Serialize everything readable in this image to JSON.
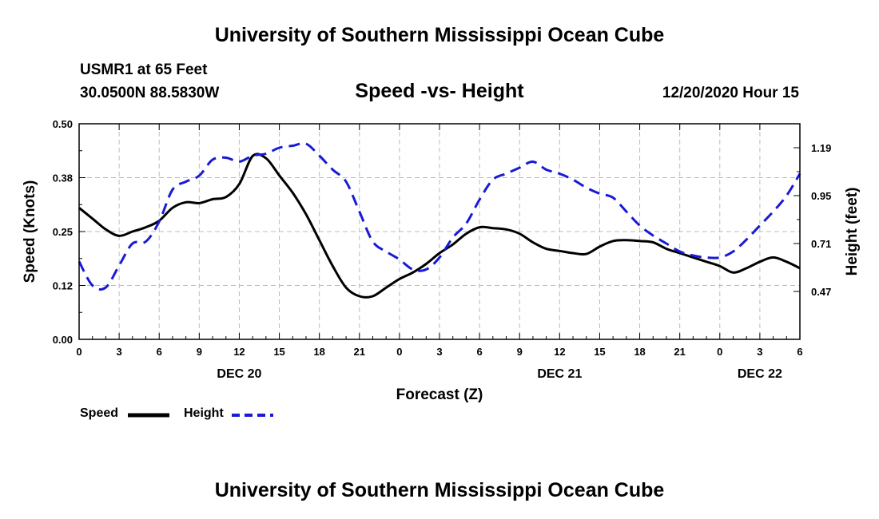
{
  "header": {
    "title": "University of Southern Mississippi Ocean Cube",
    "station": "USMR1 at 65 Feet",
    "coords": "30.0500N 88.5830W",
    "subtitle": "Speed -vs- Height",
    "datetime": "12/20/2020 Hour 15"
  },
  "footer": {
    "title": "University of Southern Mississippi Ocean Cube"
  },
  "colors": {
    "speed": "#000000",
    "height": "#1a1ad6",
    "grid": "#bbbbbb"
  },
  "chart_data": {
    "type": "line",
    "xlabel": "Forecast (Z)",
    "ylabel": "Speed (Knots)",
    "y2label": "Height (feet)",
    "xlim": [
      0,
      54
    ],
    "xticks": [
      0,
      3,
      6,
      9,
      12,
      15,
      18,
      21,
      24,
      27,
      30,
      33,
      36,
      39,
      42,
      45,
      48,
      51,
      54
    ],
    "xtick_labels": [
      "0",
      "3",
      "6",
      "9",
      "12",
      "15",
      "18",
      "21",
      "0",
      "3",
      "6",
      "9",
      "12",
      "15",
      "18",
      "21",
      "0",
      "3",
      "6"
    ],
    "date_labels": [
      {
        "x": 12,
        "label": "DEC 20"
      },
      {
        "x": 36,
        "label": "DEC 21"
      },
      {
        "x": 51,
        "label": "DEC 22"
      }
    ],
    "ylim": [
      0,
      0.5
    ],
    "yticks": [
      0.0,
      0.125,
      0.25,
      0.375,
      0.5
    ],
    "ytick_labels": [
      "0.00",
      "0.12",
      "0.25",
      "0.38",
      "0.50"
    ],
    "y2lim": [
      0.23,
      1.31
    ],
    "y2ticks": [
      0.47,
      0.71,
      0.95,
      1.19
    ],
    "y2tick_labels": [
      "0.47",
      "0.71",
      "0.95",
      "1.19"
    ],
    "series": [
      {
        "name": "Speed",
        "axis": "left",
        "style": "solid",
        "x": [
          0,
          1,
          2,
          3,
          4,
          5,
          6,
          7,
          8,
          9,
          10,
          11,
          12,
          13,
          14,
          15,
          16,
          17,
          18,
          19,
          20,
          21,
          22,
          23,
          24,
          25,
          26,
          27,
          28,
          29,
          30,
          31,
          32,
          33,
          34,
          35,
          36,
          37,
          38,
          39,
          40,
          41,
          42,
          43,
          44,
          45,
          46,
          47,
          48,
          49,
          50,
          51,
          52,
          53,
          54
        ],
        "values": [
          0.305,
          0.28,
          0.255,
          0.24,
          0.25,
          0.26,
          0.275,
          0.305,
          0.318,
          0.316,
          0.325,
          0.33,
          0.36,
          0.425,
          0.42,
          0.38,
          0.34,
          0.29,
          0.23,
          0.17,
          0.12,
          0.1,
          0.1,
          0.12,
          0.14,
          0.155,
          0.175,
          0.2,
          0.22,
          0.245,
          0.26,
          0.258,
          0.255,
          0.245,
          0.225,
          0.21,
          0.205,
          0.2,
          0.198,
          0.215,
          0.228,
          0.23,
          0.228,
          0.225,
          0.21,
          0.2,
          0.19,
          0.18,
          0.17,
          0.155,
          0.165,
          0.18,
          0.19,
          0.18,
          0.165
        ]
      },
      {
        "name": "Height",
        "axis": "right",
        "style": "dashed",
        "x": [
          0,
          1,
          2,
          3,
          4,
          5,
          6,
          7,
          8,
          9,
          10,
          11,
          12,
          13,
          14,
          15,
          16,
          17,
          18,
          19,
          20,
          21,
          22,
          23,
          24,
          25,
          26,
          27,
          28,
          29,
          30,
          31,
          32,
          33,
          34,
          35,
          36,
          37,
          38,
          39,
          40,
          41,
          42,
          43,
          44,
          45,
          46,
          47,
          48,
          49,
          50,
          51,
          52,
          53,
          54
        ],
        "values": [
          0.62,
          0.5,
          0.49,
          0.6,
          0.71,
          0.72,
          0.82,
          0.98,
          1.02,
          1.05,
          1.13,
          1.14,
          1.12,
          1.15,
          1.16,
          1.19,
          1.2,
          1.21,
          1.15,
          1.08,
          1.02,
          0.87,
          0.72,
          0.67,
          0.63,
          0.58,
          0.58,
          0.64,
          0.74,
          0.81,
          0.93,
          1.03,
          1.06,
          1.09,
          1.12,
          1.08,
          1.06,
          1.03,
          0.99,
          0.96,
          0.94,
          0.87,
          0.8,
          0.75,
          0.71,
          0.67,
          0.65,
          0.64,
          0.64,
          0.67,
          0.73,
          0.8,
          0.87,
          0.95,
          1.06
        ]
      }
    ],
    "legend": [
      "Speed",
      "Height"
    ],
    "legend_position": "bottom-left",
    "grid": true
  }
}
